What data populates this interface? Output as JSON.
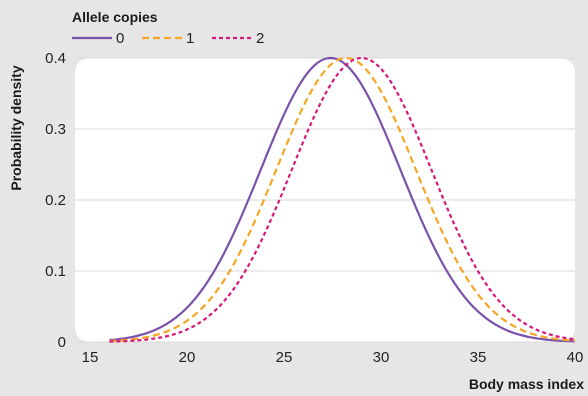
{
  "chart_data": {
    "type": "line",
    "xlabel": "Body mass index",
    "ylabel": "Probability density",
    "xlim": [
      15,
      40
    ],
    "ylim": [
      0,
      0.4
    ],
    "x_ticks": [
      "15",
      "20",
      "25",
      "30",
      "35",
      "40"
    ],
    "y_ticks": [
      "0",
      "0.1",
      "0.2",
      "0.3",
      "0.4"
    ],
    "grid": "horizontal",
    "legend": {
      "title": "Allele copies",
      "placement": "top-left",
      "entries": [
        "0",
        "1",
        "2"
      ]
    },
    "x_start": 16,
    "x_end": 40,
    "series": [
      {
        "name": "0",
        "color": "#7b52ab",
        "dash": "solid",
        "peak_x": 27.4,
        "peak_y": 0.4,
        "sd": 3.6
      },
      {
        "name": "1",
        "color": "#f5a623",
        "dash": "dashed",
        "peak_x": 28.2,
        "peak_y": 0.4,
        "sd": 3.6
      },
      {
        "name": "2",
        "color": "#d6197a",
        "dash": "dashed",
        "peak_x": 29.0,
        "peak_y": 0.4,
        "sd": 3.6
      }
    ]
  }
}
